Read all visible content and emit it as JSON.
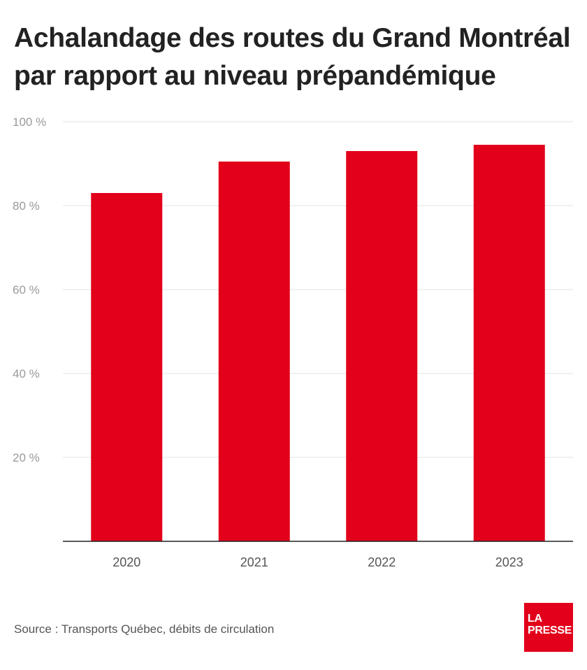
{
  "chart_data": {
    "type": "bar",
    "title": "Achalandage des routes du Grand Montréal par rapport au niveau prépandémique",
    "categories": [
      "2020",
      "2021",
      "2022",
      "2023"
    ],
    "values": [
      83,
      90.5,
      93,
      94.5
    ],
    "ylim": [
      0,
      100
    ],
    "yticks": [
      20,
      40,
      60,
      80,
      100
    ],
    "ytick_labels": [
      "20 %",
      "40 %",
      "60 %",
      "80 %",
      "100 %"
    ],
    "xlabel": "",
    "ylabel": "",
    "grid": true,
    "bar_color": "#e2001a"
  },
  "source": "Source : Transports Québec, débits de circulation",
  "logo": {
    "line1": "LA",
    "line2": "PRESSE",
    "color": "#e2001a"
  }
}
